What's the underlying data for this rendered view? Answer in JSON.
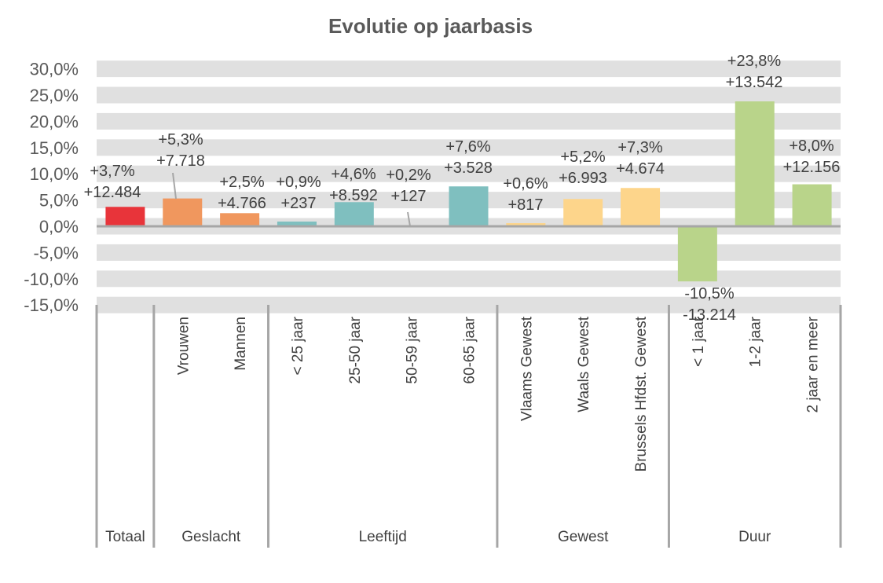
{
  "chart_data": {
    "type": "bar",
    "title": "Evolutie op jaarbasis",
    "xlabel": "",
    "ylabel": "",
    "ylim": [
      -15,
      30
    ],
    "yticks": [
      "30,0%",
      "25,0%",
      "20,0%",
      "15,0%",
      "10,0%",
      "5,0%",
      "0,0%",
      "-5,0%",
      "-10,0%",
      "-15,0%"
    ],
    "ytick_values": [
      30,
      25,
      20,
      15,
      10,
      5,
      0,
      -5,
      -10,
      -15
    ],
    "grid": "alternating horizontal bands",
    "categories": [
      "",
      "Vrouwen",
      "Mannen",
      "< 25 jaar",
      "25-50 jaar",
      "50-59 jaar",
      "60-65 jaar",
      "Vlaams Gewest",
      "Waals Gewest",
      "Brussels Hfdst. Gewest",
      "< 1 jaar",
      "1-2 jaar",
      "2 jaar en meer"
    ],
    "values": [
      3.7,
      5.3,
      2.5,
      0.9,
      4.6,
      0.2,
      7.6,
      0.6,
      5.2,
      7.3,
      -10.5,
      23.8,
      8.0
    ],
    "labels_pct": [
      "+3,7%",
      "+5,3%",
      "+2,5%",
      "+0,9%",
      "+4,6%",
      "+0,2%",
      "+7,6%",
      "+0,6%",
      "+5,2%",
      "+7,3%",
      "-10,5%",
      "+23,8%",
      "+8,0%"
    ],
    "labels_abs": [
      "+12.484",
      "+7.718",
      "+4.766",
      "+237",
      "+8.592",
      "+127",
      "+3.528",
      "+817",
      "+6.993",
      "+4.674",
      "-13.214",
      "+13.542",
      "+12.156"
    ],
    "groups": [
      {
        "name": "Totaal",
        "count": 1,
        "color": "#E8343A"
      },
      {
        "name": "Geslacht",
        "count": 2,
        "color": "#F0975E"
      },
      {
        "name": "Leeftijd",
        "count": 4,
        "color": "#7FBFBF"
      },
      {
        "name": "Gewest",
        "count": 3,
        "color": "#FDD58B"
      },
      {
        "name": "Duur",
        "count": 3,
        "color": "#B9D48A"
      }
    ],
    "colors": {
      "band": "#E0E0E0",
      "axis": "#A6A6A6",
      "text": "#404040"
    }
  }
}
